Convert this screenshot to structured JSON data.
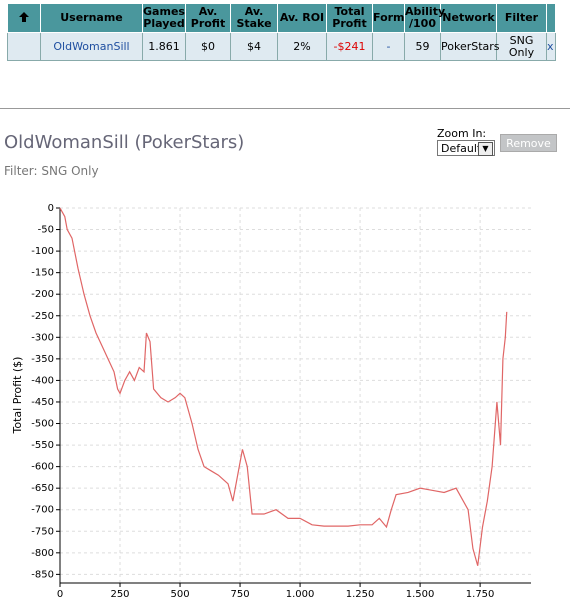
{
  "table": {
    "headers": [
      "Username",
      "Games Played",
      "Av. Profit",
      "Av. Stake",
      "Av. ROI",
      "Total Profit",
      "Form",
      "Ability /100",
      "Network",
      "Filter"
    ],
    "rows": [
      [
        "OldWomanSill",
        "1.861",
        "$0",
        "$4",
        "2%",
        "-$241",
        "-",
        "59",
        "PokerStars",
        "SNG Only",
        "x"
      ]
    ]
  },
  "header": {
    "title": "OldWomanSill (PokerStars)",
    "filter": "Filter: SNG Only"
  },
  "controls": {
    "zoom_label": "Zoom In:",
    "zoom_value": "Default",
    "button": "Remove"
  },
  "chart_data": {
    "type": "line",
    "ylabel": "Total Profit ($)",
    "color": "#e06666",
    "grid": true,
    "x": [
      0,
      10,
      20,
      30,
      50,
      75,
      100,
      125,
      150,
      175,
      200,
      225,
      240,
      250,
      270,
      290,
      310,
      330,
      350,
      360,
      375,
      390,
      420,
      450,
      480,
      500,
      520,
      550,
      575,
      600,
      630,
      660,
      700,
      720,
      740,
      760,
      780,
      800,
      850,
      900,
      950,
      1000,
      1050,
      1100,
      1200,
      1250,
      1300,
      1330,
      1360,
      1380,
      1400,
      1450,
      1500,
      1550,
      1600,
      1650,
      1700,
      1720,
      1740,
      1760,
      1780,
      1800,
      1820,
      1835,
      1845,
      1855,
      1861
    ],
    "values": [
      0,
      -10,
      -20,
      -50,
      -70,
      -140,
      -200,
      -250,
      -290,
      -320,
      -350,
      -380,
      -420,
      -430,
      -400,
      -380,
      -400,
      -370,
      -380,
      -290,
      -310,
      -420,
      -440,
      -450,
      -440,
      -430,
      -440,
      -500,
      -560,
      -600,
      -610,
      -620,
      -640,
      -680,
      -620,
      -560,
      -600,
      -710,
      -710,
      -700,
      -720,
      -720,
      -735,
      -738,
      -738,
      -735,
      -735,
      -720,
      -740,
      -700,
      -665,
      -660,
      -650,
      -655,
      -660,
      -650,
      -700,
      -790,
      -830,
      -740,
      -680,
      -600,
      -450,
      -550,
      -350,
      -300,
      -241
    ],
    "xlim": [
      0,
      1962
    ],
    "ylim": [
      -870,
      0
    ],
    "xticks": [
      0,
      250,
      500,
      750,
      {
        "value": 1000,
        "label": "1.000"
      },
      {
        "value": 1250,
        "label": "1.250"
      },
      {
        "value": 1500,
        "label": "1.500"
      },
      {
        "value": 1750,
        "label": "1.750"
      }
    ],
    "yticks": [
      0,
      -50,
      -100,
      -150,
      -200,
      -250,
      -300,
      -350,
      -400,
      -450,
      -500,
      -550,
      -600,
      -650,
      -700,
      -750,
      -800,
      -850
    ]
  }
}
